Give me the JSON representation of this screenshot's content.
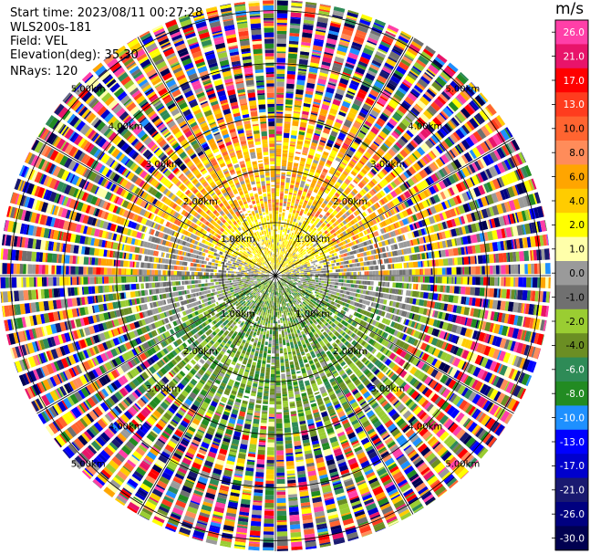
{
  "info": {
    "start_time": "Start time: 2023/08/11 00:27:28",
    "site": "WLS200s-181",
    "field": "Field: VEL",
    "elevation": "Elevation(deg): 35.30",
    "nrays": "NRays: 120"
  },
  "colorbar": {
    "unit": "m/s",
    "ticks": [
      "26.0",
      "21.0",
      "17.0",
      "13.0",
      "10.0",
      "8.0",
      "6.0",
      "4.0",
      "2.0",
      "1.0",
      "0.0",
      "-1.0",
      "-2.0",
      "-4.0",
      "-6.0",
      "-8.0",
      "-10.0",
      "-13.0",
      "-17.0",
      "-21.0",
      "-26.0",
      "-30.0"
    ],
    "colors": [
      "#ff3fa8",
      "#e8146a",
      "#ff0000",
      "#ff3c1e",
      "#ff6430",
      "#ff8c5a",
      "#ffa500",
      "#ffcc00",
      "#ffff00",
      "#ffffaa",
      "#9a9a9a",
      "#707070",
      "#9acd32",
      "#6b8e23",
      "#2e8b57",
      "#228b22",
      "#1e90ff",
      "#0000ff",
      "#0000cd",
      "#191970",
      "#000080",
      "#000050"
    ]
  },
  "chart_data": {
    "type": "ppi",
    "field": "VEL",
    "nrays": 120,
    "elevation_deg": 35.3,
    "range_ring_labels": [
      "1.00km",
      "2.00km",
      "3.00km",
      "4.00km",
      "5.00km"
    ],
    "range_rings_km": [
      1,
      2,
      3,
      4,
      5
    ],
    "max_range_km": 5.2,
    "value_range": [
      -30,
      26
    ]
  }
}
